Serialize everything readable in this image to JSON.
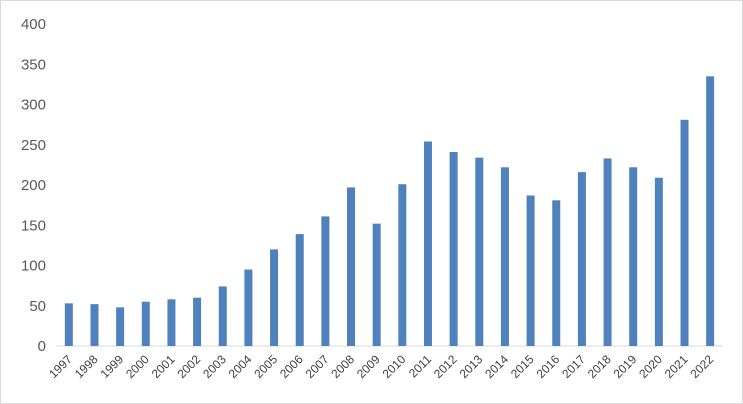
{
  "chart_data": {
    "type": "bar",
    "title": "",
    "xlabel": "",
    "ylabel": "",
    "ylim": [
      0,
      400
    ],
    "yticks": [
      0,
      50,
      100,
      150,
      200,
      250,
      300,
      350,
      400
    ],
    "grid": false,
    "legend": "none",
    "bar_color": "#4f81bd",
    "categories": [
      "1997",
      "1998",
      "1999",
      "2000",
      "2001",
      "2002",
      "2003",
      "2004",
      "2005",
      "2006",
      "2007",
      "2008",
      "2009",
      "2010",
      "2011",
      "2012",
      "2013",
      "2014",
      "2015",
      "2016",
      "2017",
      "2018",
      "2019",
      "2020",
      "2021",
      "2022"
    ],
    "values": [
      53,
      52,
      48,
      55,
      58,
      60,
      74,
      95,
      120,
      139,
      161,
      197,
      152,
      201,
      254,
      241,
      234,
      222,
      187,
      181,
      216,
      233,
      222,
      209,
      281,
      335
    ]
  }
}
